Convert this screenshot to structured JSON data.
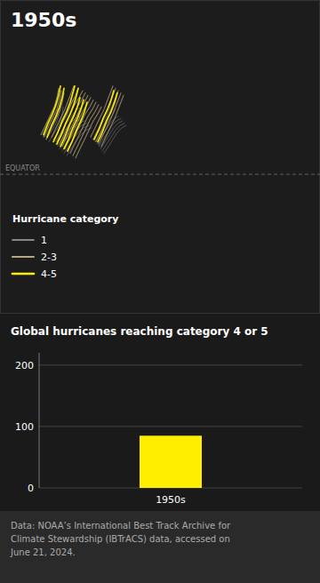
{
  "chart_data": [
    {
      "type": "line",
      "title": "1950s",
      "annotations": [
        {
          "text": "Hurricane category"
        },
        {
          "text": "EQUATOR",
          "y": 0
        }
      ],
      "xlim": [
        -180,
        180
      ],
      "ylim": [
        -60,
        75
      ],
      "tick_labels": false,
      "legend": "lower left",
      "series": [
        {
          "name": "1",
          "color": "#aaaaaa",
          "tracks": [
            {
              "x": [
                -120,
                -115,
                -110,
                -105,
                -102,
                -100,
                -98
              ],
              "values": [
                15,
                18,
                22,
                25,
                28,
                30,
                32
              ]
            },
            {
              "x": [
                -118,
                -113,
                -108,
                -103,
                -98,
                -93,
                -88
              ],
              "values": [
                14,
                17,
                20,
                23,
                26,
                28,
                29
              ]
            },
            {
              "x": [
                -117,
                -112,
                -107,
                -101,
                -95,
                -90
              ],
              "values": [
                13,
                16,
                19,
                22,
                24,
                25
              ]
            },
            {
              "x": [
                -115,
                -110,
                -105,
                -99,
                -93,
                -87
              ],
              "values": [
                12,
                15,
                18,
                21,
                23,
                24
              ]
            },
            {
              "x": [
                -113,
                -108,
                -103,
                -97,
                -91,
                -85
              ],
              "values": [
                11,
                14,
                17,
                20,
                22,
                23
              ]
            },
            {
              "x": [
                -110,
                -105,
                -100,
                -94,
                -88,
                -82
              ],
              "values": [
                10,
                13,
                16,
                19,
                21,
                22
              ]
            },
            {
              "x": [
                -108,
                -103,
                -98,
                -92,
                -86,
                -80
              ],
              "values": [
                9,
                12,
                15,
                18,
                20,
                21
              ]
            },
            {
              "x": [
                -105,
                -100,
                -95,
                -89,
                -83,
                -77
              ],
              "values": [
                8,
                11,
                14,
                17,
                19,
                20
              ]
            },
            {
              "x": [
                -130,
                -125,
                -120,
                -117,
                -115
              ],
              "values": [
                16,
                19,
                22,
                25,
                28
              ]
            },
            {
              "x": [
                -128,
                -123,
                -118,
                -115,
                -113,
                -112
              ],
              "values": [
                15,
                18,
                21,
                24,
                27,
                30
              ]
            },
            {
              "x": [
                -125,
                -120,
                -115,
                -112,
                -110,
                -109
              ],
              "values": [
                14,
                17,
                20,
                23,
                26,
                29
              ]
            },
            {
              "x": [
                -75,
                -70,
                -65,
                -60,
                -57,
                -55
              ],
              "values": [
                15,
                18,
                22,
                25,
                28,
                31
              ]
            },
            {
              "x": [
                -73,
                -68,
                -63,
                -58,
                -53,
                -50
              ],
              "values": [
                14,
                17,
                20,
                23,
                26,
                28
              ]
            },
            {
              "x": [
                -71,
                -66,
                -61,
                -56,
                -51,
                -47
              ],
              "values": [
                13,
                16,
                19,
                22,
                24,
                25
              ]
            },
            {
              "x": [
                -69,
                -64,
                -59,
                -54,
                -49,
                -44
              ],
              "values": [
                12,
                15,
                18,
                21,
                23,
                24
              ]
            },
            {
              "x": [
                -67,
                -62,
                -57,
                -52,
                -47,
                -42
              ],
              "values": [
                11,
                14,
                17,
                20,
                22,
                23
              ]
            },
            {
              "x": [
                -65,
                -60,
                -55,
                -50,
                -45,
                -40
              ],
              "values": [
                10,
                13,
                16,
                19,
                21,
                22
              ]
            },
            {
              "x": [
                -63,
                -58,
                -53,
                -48,
                -43,
                -38
              ],
              "values": [
                9,
                12,
                15,
                18,
                20,
                21
              ]
            }
          ]
        },
        {
          "name": "2-3",
          "color": "#b8a882",
          "tracks": [
            {
              "x": [
                -122,
                -117,
                -112,
                -107,
                -103,
                -100,
                -97
              ],
              "values": [
                16,
                20,
                24,
                28,
                32,
                35,
                38
              ]
            },
            {
              "x": [
                -119,
                -114,
                -109,
                -104,
                -99,
                -95,
                -92
              ],
              "values": [
                15,
                19,
                23,
                27,
                31,
                34,
                37
              ]
            },
            {
              "x": [
                -116,
                -111,
                -106,
                -101,
                -96,
                -91,
                -87
              ],
              "values": [
                14,
                18,
                22,
                26,
                30,
                33,
                36
              ]
            },
            {
              "x": [
                -113,
                -108,
                -103,
                -98,
                -93,
                -88,
                -84
              ],
              "values": [
                13,
                17,
                21,
                25,
                29,
                32,
                35
              ]
            },
            {
              "x": [
                -110,
                -105,
                -100,
                -95,
                -90,
                -85,
                -81
              ],
              "values": [
                12,
                16,
                20,
                24,
                28,
                31,
                34
              ]
            },
            {
              "x": [
                -107,
                -102,
                -97,
                -92,
                -87,
                -82,
                -78
              ],
              "values": [
                11,
                15,
                19,
                23,
                27,
                30,
                33
              ]
            },
            {
              "x": [
                -104,
                -99,
                -94,
                -89,
                -84,
                -79,
                -75
              ],
              "values": [
                10,
                14,
                18,
                22,
                26,
                29,
                32
              ]
            },
            {
              "x": [
                -101,
                -96,
                -91,
                -86,
                -81,
                -76,
                -72
              ],
              "values": [
                9,
                13,
                17,
                21,
                25,
                28,
                31
              ]
            },
            {
              "x": [
                -98,
                -93,
                -88,
                -83,
                -78,
                -73,
                -69
              ],
              "values": [
                8,
                12,
                16,
                20,
                24,
                27,
                30
              ]
            },
            {
              "x": [
                -95,
                -90,
                -85,
                -80,
                -75,
                -70,
                -66
              ],
              "values": [
                7,
                11,
                15,
                19,
                23,
                26,
                29
              ]
            },
            {
              "x": [
                -134,
                -129,
                -124,
                -119,
                -116,
                -114
              ],
              "values": [
                17,
                21,
                25,
                29,
                33,
                37
              ]
            },
            {
              "x": [
                -131,
                -126,
                -121,
                -116,
                -113,
                -111
              ],
              "values": [
                16,
                20,
                24,
                28,
                32,
                36
              ]
            },
            {
              "x": [
                -128,
                -123,
                -118,
                -113,
                -110,
                -108
              ],
              "values": [
                15,
                19,
                23,
                27,
                31,
                35
              ]
            },
            {
              "x": [
                -78,
                -73,
                -68,
                -63,
                -59,
                -56,
                -53
              ],
              "values": [
                16,
                20,
                24,
                28,
                32,
                35,
                38
              ]
            },
            {
              "x": [
                -75,
                -70,
                -65,
                -60,
                -56,
                -53,
                -50
              ],
              "values": [
                15,
                19,
                23,
                27,
                31,
                34,
                37
              ]
            },
            {
              "x": [
                -72,
                -67,
                -62,
                -57,
                -53,
                -50,
                -47
              ],
              "values": [
                14,
                18,
                22,
                26,
                30,
                33,
                36
              ]
            },
            {
              "x": [
                -69,
                -64,
                -59,
                -54,
                -50,
                -47,
                -44
              ],
              "values": [
                13,
                17,
                21,
                25,
                29,
                32,
                35
              ]
            },
            {
              "x": [
                -66,
                -61,
                -56,
                -51,
                -47,
                -44,
                -41
              ],
              "values": [
                12,
                16,
                20,
                24,
                28,
                31,
                34
              ]
            }
          ]
        },
        {
          "name": "4-5",
          "color": "#ffee00",
          "tracks": [
            {
              "x": [
                -120,
                -115,
                -110,
                -105,
                -101,
                -98,
                -96
              ],
              "values": [
                14,
                18,
                23,
                27,
                31,
                35,
                38
              ]
            },
            {
              "x": [
                -116,
                -111,
                -106,
                -101,
                -97,
                -94,
                -92
              ],
              "values": [
                13,
                17,
                22,
                26,
                30,
                34,
                37
              ]
            },
            {
              "x": [
                -112,
                -107,
                -102,
                -97,
                -93,
                -90
              ],
              "values": [
                12,
                16,
                21,
                25,
                29,
                33
              ]
            },
            {
              "x": [
                -108,
                -103,
                -98,
                -93,
                -89,
                -86
              ],
              "values": [
                11,
                15,
                20,
                24,
                28,
                32
              ]
            },
            {
              "x": [
                -104,
                -99,
                -94,
                -89,
                -85,
                -82
              ],
              "values": [
                10,
                14,
                19,
                23,
                27,
                31
              ]
            },
            {
              "x": [
                -131,
                -126,
                -121,
                -117,
                -114,
                -112
              ],
              "values": [
                17,
                22,
                26,
                30,
                34,
                38
              ]
            },
            {
              "x": [
                -127,
                -122,
                -117,
                -113,
                -110,
                -108
              ],
              "values": [
                16,
                21,
                25,
                29,
                33,
                37
              ]
            },
            {
              "x": [
                -74,
                -69,
                -64,
                -59,
                -55,
                -52
              ],
              "values": [
                15,
                19,
                24,
                28,
                32,
                36
              ]
            },
            {
              "x": [
                -70,
                -65,
                -60,
                -55,
                -51,
                -48
              ],
              "values": [
                14,
                18,
                23,
                27,
                31,
                35
              ]
            }
          ]
        }
      ]
    },
    {
      "type": "bar",
      "title": "Global hurricanes reaching category 4 or 5",
      "categories": [
        "1950s"
      ],
      "values": [
        85
      ],
      "color": "#ffee00",
      "ylim": [
        0,
        220
      ],
      "yticks": [
        0,
        100,
        200
      ],
      "grid": true,
      "annotations": [
        {
          "text": "Data: NOAA’s International Best Track Archive for\nClimate Stewardship (IBTrACS) data, accessed on\nJune 21, 2024."
        }
      ]
    }
  ]
}
